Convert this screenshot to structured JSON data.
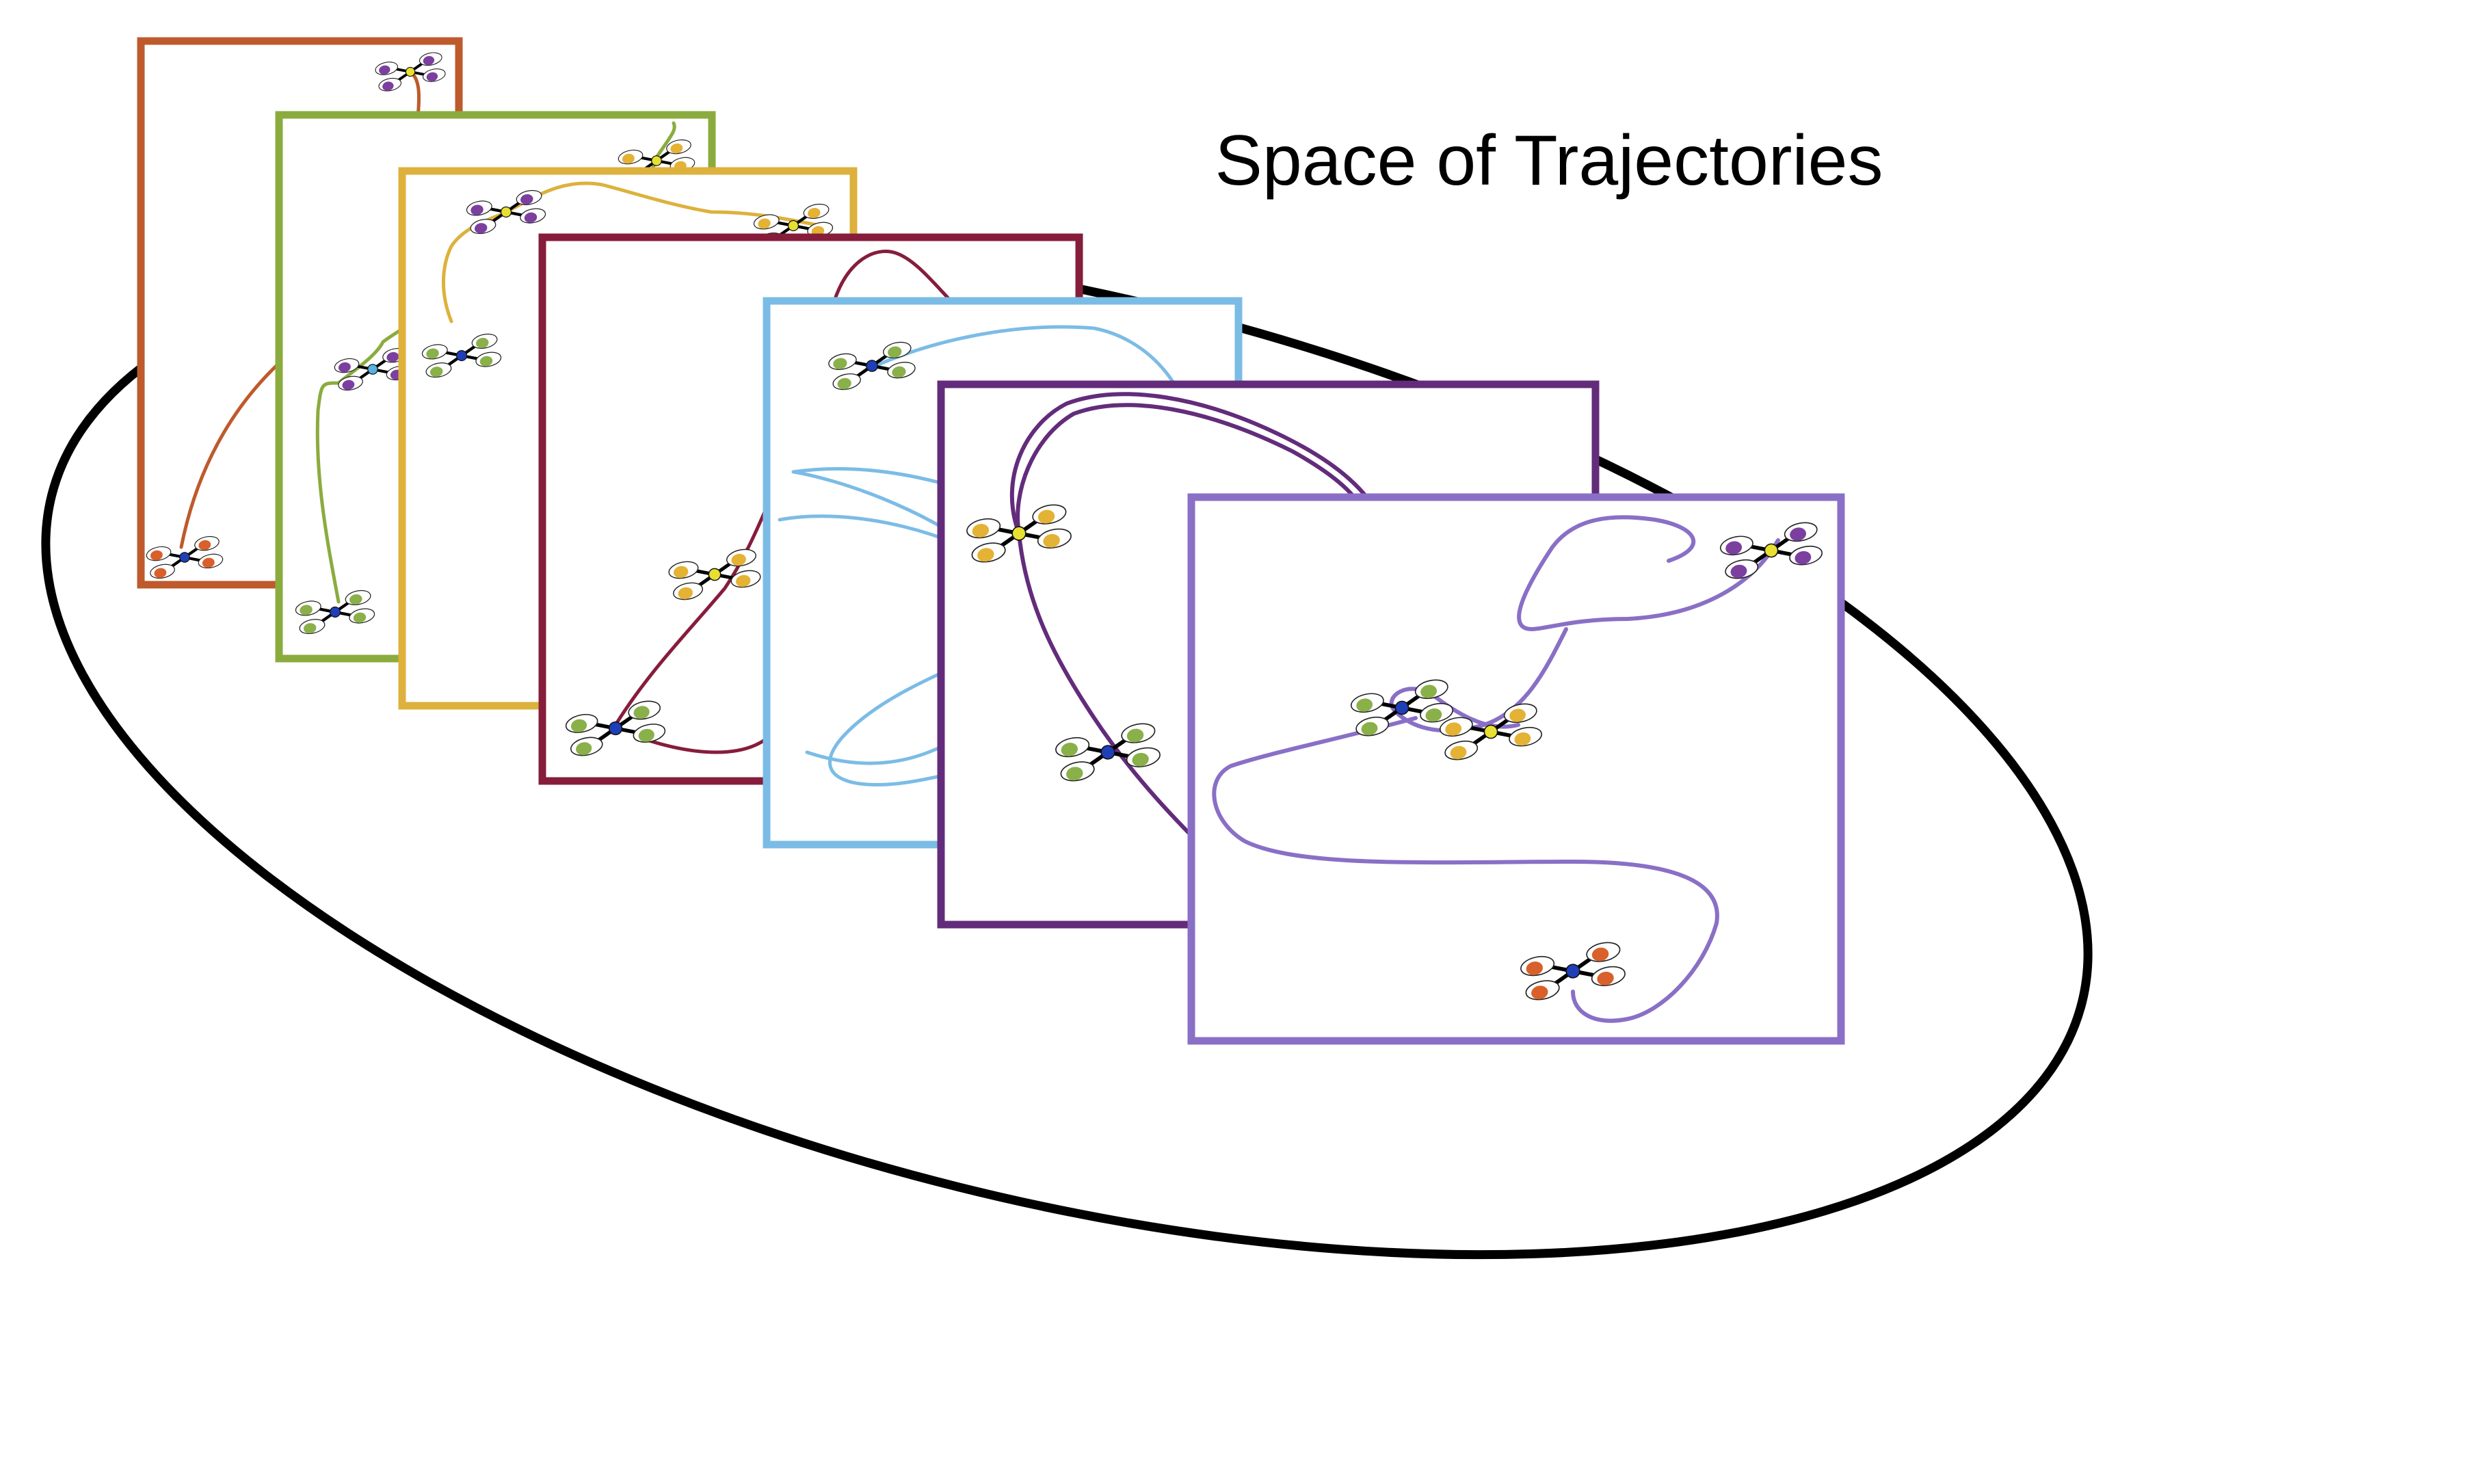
{
  "title": "Space of Trajectories",
  "colors": {
    "ellipse": "#000000",
    "panel_1": "#BE5A2B",
    "panel_2": "#8AAC3E",
    "panel_3": "#DDB13C",
    "panel_4": "#861D3B",
    "panel_5": "#7BBCE6",
    "panel_6": "#632C7B",
    "panel_7": "#8A6FC6",
    "drone_orange": "#D9602A",
    "drone_purple": "#7C3FA0",
    "drone_yellow": "#E4B234",
    "drone_green": "#8AB04A",
    "hub_blue": "#1F3FB8",
    "hub_yellow": "#E8E030",
    "hub_lightblue": "#5AB0E0"
  },
  "icons": [
    "quadrotor-drone-icon"
  ],
  "panels": [
    {
      "name": "trajectory-panel-orange",
      "color_key": "panel_1"
    },
    {
      "name": "trajectory-panel-green",
      "color_key": "panel_2"
    },
    {
      "name": "trajectory-panel-yellow",
      "color_key": "panel_3"
    },
    {
      "name": "trajectory-panel-crimson",
      "color_key": "panel_4"
    },
    {
      "name": "trajectory-panel-lightblue",
      "color_key": "panel_5"
    },
    {
      "name": "trajectory-panel-darkpurple",
      "color_key": "panel_6"
    },
    {
      "name": "trajectory-panel-lavender",
      "color_key": "panel_7"
    }
  ]
}
